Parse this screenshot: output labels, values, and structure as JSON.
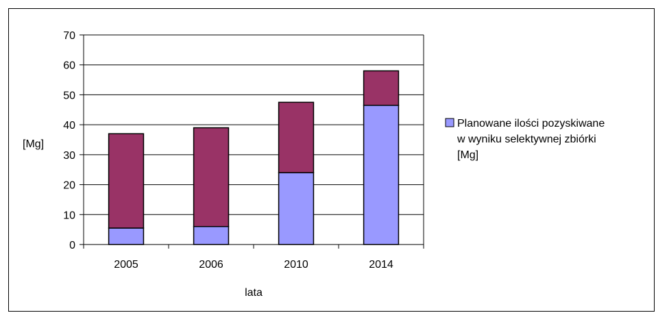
{
  "chart_data": {
    "type": "bar",
    "stacked": true,
    "categories": [
      "2005",
      "2006",
      "2010",
      "2014"
    ],
    "series": [
      {
        "name": "Planowane ilości pozyskiwane w wyniku selektywnej zbiórki [Mg]",
        "values": [
          5.5,
          6,
          24,
          46.5
        ],
        "color": "#9999ff"
      },
      {
        "name": "",
        "values": [
          31.5,
          33,
          23.5,
          11.5
        ],
        "color": "#993366"
      }
    ],
    "xlabel": "lata",
    "ylabel": "[Mg]",
    "ylim": [
      0,
      70
    ],
    "yticks": [
      0,
      10,
      20,
      30,
      40,
      50,
      60,
      70
    ],
    "grid": true,
    "legend_position": "right",
    "legend_lines": [
      "Planowane ilości pozyskiwane",
      "w wyniku selektywnej zbiórki",
      "[Mg]"
    ]
  }
}
